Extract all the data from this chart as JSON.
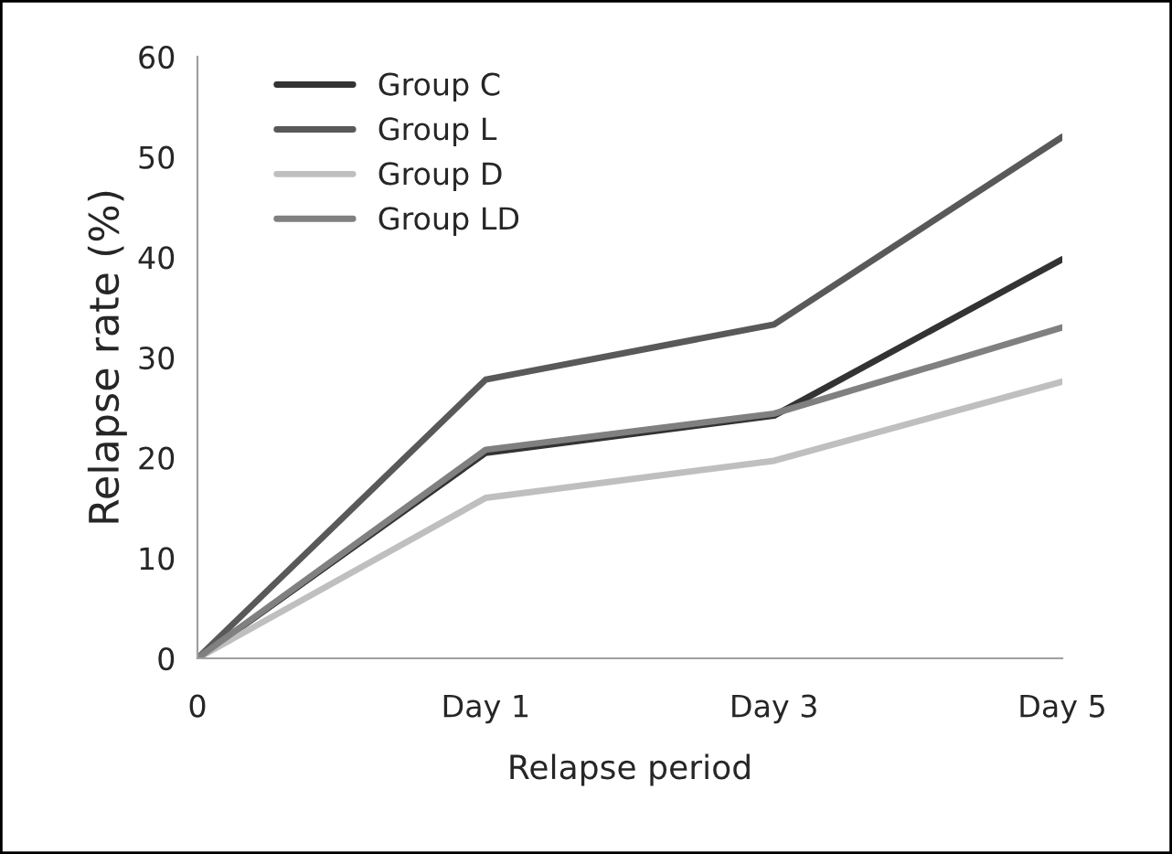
{
  "chart_data": {
    "type": "line",
    "xlabel": "Relapse period",
    "ylabel": "Relapse rate (%)",
    "categories": [
      "0",
      "Day 1",
      "Day 3",
      "Day 5"
    ],
    "series": [
      {
        "name": "Group C",
        "color": "#333333",
        "values": [
          0,
          20.5,
          24.2,
          39.8
        ]
      },
      {
        "name": "Group L",
        "color": "#595959",
        "values": [
          0,
          27.8,
          33.3,
          52
        ]
      },
      {
        "name": "Group D",
        "color": "#bfbfbf",
        "values": [
          0,
          16,
          19.7,
          27.6
        ]
      },
      {
        "name": "Group LD",
        "color": "#808080",
        "values": [
          0,
          20.8,
          24.4,
          33
        ]
      }
    ],
    "ylim": [
      0,
      60
    ],
    "yticks": [
      0,
      10,
      20,
      30,
      40,
      50,
      60
    ],
    "grid": false,
    "legend": "top left",
    "marker": "none",
    "line_style": "solid"
  }
}
